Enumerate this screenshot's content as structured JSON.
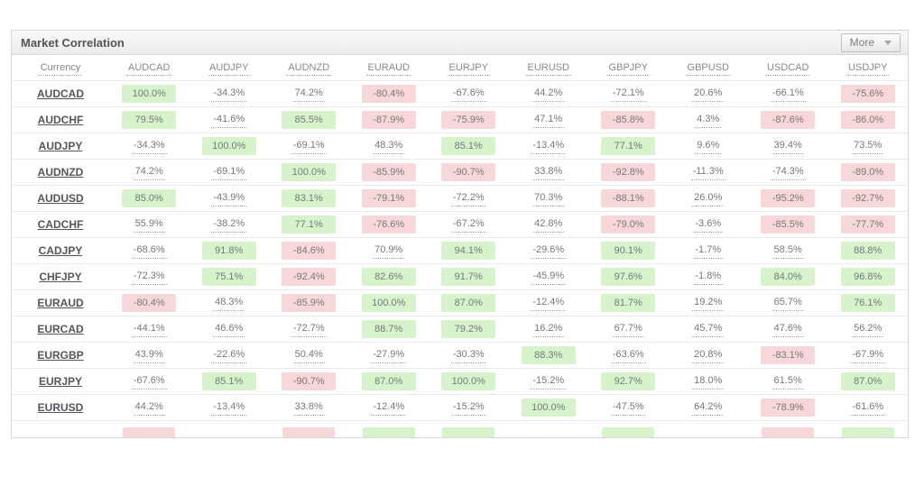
{
  "widget": {
    "title": "Market Correlation",
    "more_button": {
      "label": "More",
      "icon": "triangle-down"
    }
  },
  "table": {
    "row_header_label": "Currency",
    "columns": [
      "AUDCAD",
      "AUDJPY",
      "AUDNZD",
      "EURAUD",
      "EURJPY",
      "EURUSD",
      "GBPJPY",
      "GBPUSD",
      "USDCAD",
      "USDJPY"
    ],
    "rows": [
      {
        "pair": "AUDCAD",
        "values": [
          100.0,
          -34.3,
          74.2,
          -80.4,
          -67.6,
          44.2,
          -72.1,
          20.6,
          -66.1,
          -75.6
        ]
      },
      {
        "pair": "AUDCHF",
        "values": [
          79.5,
          -41.6,
          85.5,
          -87.9,
          -75.9,
          47.1,
          -85.8,
          4.3,
          -87.6,
          -86.0
        ]
      },
      {
        "pair": "AUDJPY",
        "values": [
          -34.3,
          100.0,
          -69.1,
          48.3,
          85.1,
          -13.4,
          77.1,
          9.6,
          39.4,
          73.5
        ]
      },
      {
        "pair": "AUDNZD",
        "values": [
          74.2,
          -69.1,
          100.0,
          -85.9,
          -90.7,
          33.8,
          -92.8,
          -11.3,
          -74.3,
          -89.0
        ]
      },
      {
        "pair": "AUDUSD",
        "values": [
          85.0,
          -43.9,
          83.1,
          -79.1,
          -72.2,
          70.3,
          -88.1,
          26.0,
          -95.2,
          -92.7
        ]
      },
      {
        "pair": "CADCHF",
        "values": [
          55.9,
          -38.2,
          77.1,
          -76.6,
          -67.2,
          42.8,
          -79.0,
          -3.6,
          -85.5,
          -77.7
        ]
      },
      {
        "pair": "CADJPY",
        "values": [
          -68.6,
          91.8,
          -84.6,
          70.9,
          94.1,
          -29.6,
          90.1,
          -1.7,
          58.5,
          88.8
        ]
      },
      {
        "pair": "CHFJPY",
        "values": [
          -72.3,
          75.1,
          -92.4,
          82.6,
          91.7,
          -45.9,
          97.6,
          -1.8,
          84.0,
          96.8
        ]
      },
      {
        "pair": "EURAUD",
        "values": [
          -80.4,
          48.3,
          -85.9,
          100.0,
          87.0,
          -12.4,
          81.7,
          19.2,
          65.7,
          76.1
        ]
      },
      {
        "pair": "EURCAD",
        "values": [
          -44.1,
          46.6,
          -72.7,
          88.7,
          79.2,
          16.2,
          67.7,
          45.7,
          47.6,
          56.2
        ]
      },
      {
        "pair": "EURGBP",
        "values": [
          43.9,
          -22.6,
          50.4,
          -27.9,
          -30.3,
          88.3,
          -63.6,
          20.8,
          -83.1,
          -67.9
        ]
      },
      {
        "pair": "EURJPY",
        "values": [
          -67.6,
          85.1,
          -90.7,
          87.0,
          100.0,
          -15.2,
          92.7,
          18.0,
          61.5,
          87.0
        ]
      },
      {
        "pair": "EURUSD",
        "values": [
          44.2,
          -13.4,
          33.8,
          -12.4,
          -15.2,
          100.0,
          -47.5,
          64.2,
          -78.9,
          -61.6
        ]
      }
    ],
    "partial_row_colors": [
      "negative",
      null,
      "negative",
      "positive",
      "positive",
      null,
      "positive",
      null,
      "negative",
      "positive"
    ],
    "value_suffix": "%",
    "highlight_threshold": 75,
    "colors": {
      "positive_bg": "#d6f3cc",
      "negative_bg": "#f8d7d8"
    }
  }
}
